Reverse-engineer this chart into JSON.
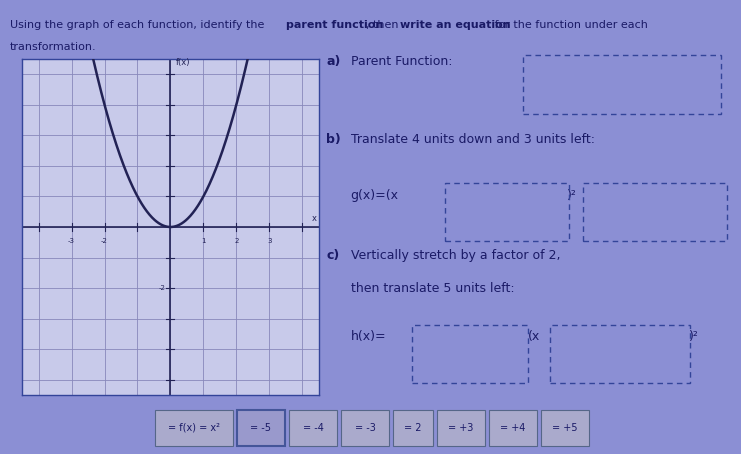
{
  "bg_color": "#8b8fd4",
  "graph_bg": "#c8caea",
  "grid_color": "#8888bb",
  "axis_color": "#222255",
  "curve_color": "#222255",
  "text_color": "#1a1a66",
  "box_edge_color": "#334499",
  "bottom_bg": "#7878bb",
  "tile_color": "#aaaacc",
  "tile_highlight": "#aaaacc",
  "graph_border": "#334499",
  "parabola_xlim": [
    -3,
    3
  ],
  "bottom_labels": [
    "= f(x) = x²",
    "= -5",
    "= -4",
    "= -3",
    "= 2",
    "= +3",
    "= +4",
    "= +5"
  ]
}
